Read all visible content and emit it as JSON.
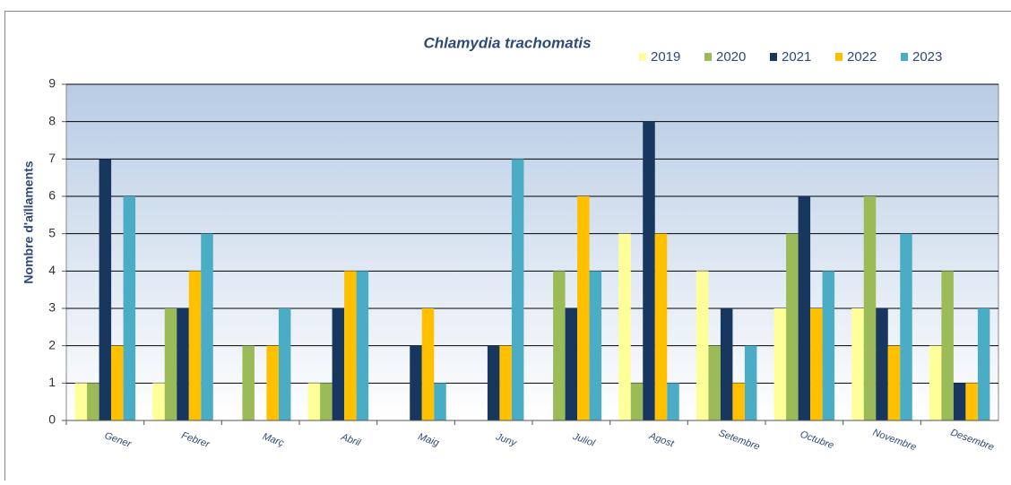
{
  "chart_data": {
    "type": "bar",
    "title": "Chlamydia trachomatis",
    "y_label": "Nombre d'aïllaments",
    "categories": [
      "Gener",
      "Febrer",
      "Març",
      "Abril",
      "Maig",
      "Juny",
      "Juliol",
      "Agost",
      "Setembre",
      "Octubre",
      "Novembre",
      "Desembre"
    ],
    "series": [
      {
        "name": "2019",
        "color": "#ffff99",
        "values": [
          1,
          1,
          0,
          1,
          0,
          0,
          0,
          5,
          4,
          3,
          3,
          2
        ]
      },
      {
        "name": "2020",
        "color": "#9bbb59",
        "values": [
          1,
          3,
          2,
          1,
          0,
          0,
          4,
          1,
          2,
          5,
          6,
          4
        ]
      },
      {
        "name": "2021",
        "color": "#17375e",
        "values": [
          7,
          3,
          0,
          3,
          2,
          2,
          3,
          8,
          3,
          6,
          3,
          1
        ]
      },
      {
        "name": "2022",
        "color": "#ffc000",
        "values": [
          2,
          4,
          2,
          4,
          3,
          2,
          6,
          5,
          1,
          3,
          2,
          1
        ]
      },
      {
        "name": "2023",
        "color": "#4bacc6",
        "values": [
          6,
          5,
          3,
          4,
          1,
          7,
          4,
          1,
          2,
          4,
          5,
          3
        ]
      }
    ],
    "ylim": [
      0,
      9
    ],
    "yticks": [
      0,
      1,
      2,
      3,
      4,
      5,
      6,
      7,
      8,
      9
    ],
    "grid": true,
    "legend": "top-right"
  }
}
